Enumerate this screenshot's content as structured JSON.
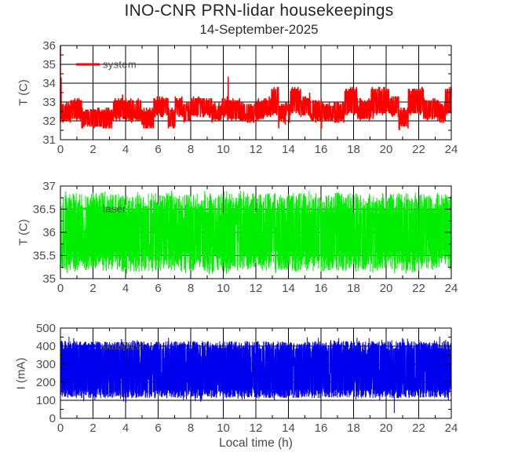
{
  "header": {
    "title": "INO-CNR PRN-lidar housekeepings",
    "subtitle": "14-September-2025"
  },
  "chart_data": {
    "type": "line",
    "title": "INO-CNR PRN-lidar housekeepings",
    "subtitle": "14-September-2025",
    "x_label": "Local time (h)",
    "x_range": [
      0,
      24
    ],
    "x_ticks": [
      0,
      2,
      4,
      6,
      8,
      10,
      12,
      14,
      16,
      18,
      20,
      22,
      24
    ],
    "x_tick_labels": [
      "0",
      "2",
      "4",
      "6",
      "8",
      "10",
      "12",
      "14",
      "16",
      "18",
      "20",
      "22",
      "24"
    ],
    "x_minor_step": 1,
    "grid": "on",
    "background": "#ffffff",
    "axis_color": "#000000",
    "label_color": "#4d4d4d",
    "noise_seed": 20250914,
    "panels": [
      {
        "name": "system-temperature",
        "legend": "system",
        "legend_position": "upper-left-inside",
        "ylabel": "T (C)",
        "color": "#ff0000",
        "ylim": [
          31,
          36
        ],
        "yticks": [
          31,
          32,
          33,
          34,
          35,
          36
        ],
        "y_tick_labels": [
          "31",
          "32",
          "33",
          "34",
          "35",
          "36"
        ],
        "y_minor_step": 0.5,
        "signal": {
          "kind": "blocky-noise",
          "n": 950,
          "observed_range": [
            31.5,
            33.8
          ],
          "band_sets": [
            [
              32.0,
              33.2
            ],
            [
              31.6,
              32.7
            ],
            [
              32.3,
              33.8
            ],
            [
              31.9,
              33.0
            ],
            [
              32.2,
              33.3
            ]
          ],
          "dwell_h": [
            0.3,
            1.0
          ],
          "edge": 0.2,
          "p_mid": 0.12,
          "p_out": 0.02,
          "out_ext": 0.3,
          "quantize": 0.1,
          "events": [
            {
              "t": 0.0,
              "value": 36.0
            },
            {
              "t": 0.04,
              "value": 34.3
            },
            {
              "t": 10.3,
              "value": 34.35
            }
          ]
        }
      },
      {
        "name": "laser-temperature",
        "legend": "laser",
        "legend_position": "upper-left-inside",
        "ylabel": "T (C)",
        "color": "#00ee00",
        "ylim": [
          35,
          37
        ],
        "yticks": [
          35,
          35.5,
          36,
          36.5,
          37
        ],
        "y_tick_labels": [
          "35",
          "35.5",
          "36",
          "36.5",
          "37"
        ],
        "y_minor_step": 0.25,
        "signal": {
          "kind": "dense-noise",
          "n": 2200,
          "observed_range": [
            35.1,
            36.9
          ],
          "band": [
            35.15,
            36.85
          ],
          "edge": 0.45,
          "p_mid": 0.3,
          "p_out": 0.01,
          "out_ext": 0.05,
          "events": []
        }
      },
      {
        "name": "stabilizer-current",
        "legend": "stabilizer",
        "legend_position": "upper-left-inside",
        "ylabel": "I (mA)",
        "color": "#0000ee",
        "ylim": [
          0,
          500
        ],
        "yticks": [
          0,
          100,
          200,
          300,
          400,
          500
        ],
        "y_tick_labels": [
          "0",
          "100",
          "200",
          "300",
          "400",
          "500"
        ],
        "y_minor_step": 50,
        "signal": {
          "kind": "dense-noise",
          "n": 2600,
          "observed_range": [
            90,
            455
          ],
          "band": [
            112,
            428
          ],
          "edge": 52,
          "p_mid": 0.3,
          "p_out": 0.015,
          "out_ext": 25,
          "events": [
            {
              "t": 20.5,
              "value": 30
            }
          ]
        }
      }
    ]
  }
}
